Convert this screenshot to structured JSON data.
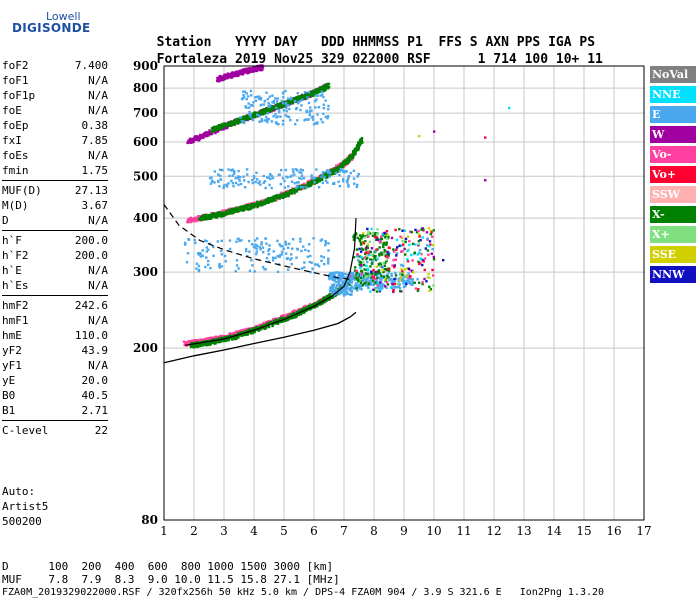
{
  "logo": {
    "top": "Lowell",
    "bottom": "DIGISONDE"
  },
  "header": {
    "labels": [
      "Station",
      "YYYY",
      "DAY",
      "DDD",
      "HHMMSS",
      "P1",
      "FFS",
      "S",
      "AXN",
      "PPS",
      "IGA",
      "PS"
    ],
    "values": [
      "Fortaleza",
      "2019",
      "Nov25",
      "329",
      "022000",
      "RSF",
      "",
      "1",
      "714",
      "100",
      "10+",
      "11"
    ]
  },
  "params": [
    [
      {
        "name": "foF2",
        "value": "7.400"
      },
      {
        "name": "foF1",
        "value": "N/A"
      },
      {
        "name": "foF1p",
        "value": "N/A"
      },
      {
        "name": "foE",
        "value": "N/A"
      },
      {
        "name": "foEp",
        "value": "0.38"
      },
      {
        "name": "fxI",
        "value": "7.85"
      },
      {
        "name": "foEs",
        "value": "N/A"
      },
      {
        "name": "fmin",
        "value": "1.75"
      }
    ],
    [
      {
        "name": "MUF(D)",
        "value": "27.13"
      },
      {
        "name": "M(D)",
        "value": "3.67"
      },
      {
        "name": "D",
        "value": "N/A"
      }
    ],
    [
      {
        "name": "h`F",
        "value": "200.0"
      },
      {
        "name": "h`F2",
        "value": "200.0"
      },
      {
        "name": "h`E",
        "value": "N/A"
      },
      {
        "name": "h`Es",
        "value": "N/A"
      }
    ],
    [
      {
        "name": "hmF2",
        "value": "242.6"
      },
      {
        "name": "hmF1",
        "value": "N/A"
      },
      {
        "name": "hmE",
        "value": "110.0"
      },
      {
        "name": "yF2",
        "value": "43.9"
      },
      {
        "name": "yF1",
        "value": "N/A"
      },
      {
        "name": "yE",
        "value": "20.0"
      },
      {
        "name": "B0",
        "value": "40.5"
      },
      {
        "name": "B1",
        "value": "2.71"
      }
    ],
    [
      {
        "name": "C-level",
        "value": "22"
      }
    ]
  ],
  "auto": {
    "line1": "Auto:",
    "line2": "Artist5",
    "line3": "500200"
  },
  "legend": [
    {
      "label": "NoVal",
      "color": "#808080"
    },
    {
      "label": "NNE",
      "color": "#00e0ff"
    },
    {
      "label": "E",
      "color": "#4aa8ee"
    },
    {
      "label": "W",
      "color": "#a000a0"
    },
    {
      "label": "Vo-",
      "color": "#ff40a0"
    },
    {
      "label": "Vo+",
      "color": "#ff0030"
    },
    {
      "label": "SSW",
      "color": "#ffb0b0"
    },
    {
      "label": "X-",
      "color": "#008000"
    },
    {
      "label": "X+",
      "color": "#80e080"
    },
    {
      "label": "SSE",
      "color": "#d0d000"
    },
    {
      "label": "NNW",
      "color": "#1010c0"
    }
  ],
  "footer": {
    "d_label": "D",
    "d_values": [
      "100",
      "200",
      "400",
      "600",
      "800",
      "1000",
      "1500",
      "3000",
      "[km]"
    ],
    "muf_label": "MUF",
    "muf_values": [
      "7.8",
      "7.9",
      "8.3",
      "9.0",
      "10.0",
      "11.5",
      "15.8",
      "27.1",
      "[MHz]"
    ],
    "info": "FZA0M_2019329022000.RSF / 320fx256h 50 kHz 5.0 km / DPS-4 FZA0M 904 / 3.9 S 321.6 E   Ion2Png 1.3.20"
  },
  "chart_data": {
    "type": "scatter",
    "xlim": [
      1,
      17
    ],
    "ylim": [
      80,
      900
    ],
    "y_scale": "log",
    "xticks": [
      1,
      2,
      3,
      4,
      5,
      6,
      7,
      8,
      9,
      10,
      11,
      12,
      13,
      14,
      15,
      16,
      17
    ],
    "yticks": [
      80,
      200,
      300,
      400,
      500,
      600,
      700,
      800,
      900
    ],
    "grid": true,
    "legend_position": "right",
    "bands": [
      {
        "color": "#ff40a0",
        "points": [
          [
            1.7,
            205
          ],
          [
            2.2,
            207
          ],
          [
            3,
            212
          ],
          [
            4,
            222
          ],
          [
            5,
            236
          ],
          [
            6,
            252
          ],
          [
            6.6,
            265
          ],
          [
            7,
            278
          ],
          [
            7.3,
            295
          ]
        ]
      },
      {
        "color": "#008000",
        "points": [
          [
            1.9,
            203
          ],
          [
            2.5,
            206
          ],
          [
            3.3,
            212
          ],
          [
            4.3,
            224
          ],
          [
            5.3,
            238
          ],
          [
            6.2,
            255
          ],
          [
            6.8,
            270
          ],
          [
            7.2,
            285
          ]
        ]
      },
      {
        "color": "#ff40a0",
        "points": [
          [
            1.8,
            395
          ],
          [
            2.5,
            405
          ],
          [
            3.5,
            420
          ],
          [
            4.5,
            440
          ],
          [
            5.5,
            470
          ],
          [
            6.3,
            500
          ],
          [
            7,
            535
          ],
          [
            7.3,
            560
          ]
        ]
      },
      {
        "color": "#008000",
        "points": [
          [
            2.2,
            400
          ],
          [
            3,
            410
          ],
          [
            4,
            428
          ],
          [
            5,
            452
          ],
          [
            6,
            485
          ],
          [
            6.8,
            520
          ],
          [
            7.3,
            560
          ],
          [
            7.6,
            610
          ]
        ]
      },
      {
        "color": "#a000a0",
        "points": [
          [
            1.8,
            600
          ],
          [
            2.5,
            630
          ],
          [
            3.3,
            665
          ],
          [
            4.2,
            700
          ],
          [
            5,
            735
          ],
          [
            5.8,
            770
          ],
          [
            6.4,
            810
          ]
        ]
      },
      {
        "color": "#008000",
        "points": [
          [
            2.6,
            640
          ],
          [
            3.4,
            670
          ],
          [
            4.3,
            705
          ],
          [
            5.1,
            740
          ],
          [
            5.9,
            775
          ],
          [
            6.5,
            810
          ]
        ]
      },
      {
        "color": "#a000a0",
        "points": [
          [
            2.8,
            840
          ],
          [
            3.3,
            860
          ],
          [
            3.8,
            880
          ],
          [
            4.3,
            895
          ]
        ]
      }
    ],
    "clusters": [
      {
        "color": "#4aa8ee",
        "x": [
          1.7,
          6.5
        ],
        "y": [
          300,
          360
        ]
      },
      {
        "color": "#4aa8ee",
        "x": [
          2.5,
          7.5
        ],
        "y": [
          470,
          520
        ]
      },
      {
        "color": "#4aa8ee",
        "x": [
          3.5,
          6.5
        ],
        "y": [
          660,
          790
        ]
      },
      {
        "color": "#4aa8ee",
        "x": [
          7.3,
          9.3
        ],
        "y": [
          275,
          300
        ]
      },
      {
        "color": "#008000",
        "x": [
          7.3,
          8.5
        ],
        "y": [
          280,
          370
        ]
      },
      {
        "color": "#4aa8ee",
        "x": [
          6.5,
          7.3
        ],
        "y": [
          265,
          300
        ]
      }
    ],
    "scatter_colors": [
      "#4aa8ee",
      "#008000",
      "#ff40a0",
      "#d0d000",
      "#a000a0",
      "#1010c0",
      "#ff0030",
      "#00e0ff",
      "#80e080"
    ],
    "scatter_region": {
      "x": [
        7.4,
        10.0
      ],
      "y": [
        270,
        380
      ]
    },
    "isolated_points": [
      {
        "x": 12.5,
        "y": 720,
        "color": "#00e0ff"
      },
      {
        "x": 10.0,
        "y": 635,
        "color": "#a000a0"
      },
      {
        "x": 11.7,
        "y": 615,
        "color": "#ff0030"
      },
      {
        "x": 11.7,
        "y": 490,
        "color": "#a000a0"
      },
      {
        "x": 9.5,
        "y": 620,
        "color": "#d0d000"
      },
      {
        "x": 10.3,
        "y": 320,
        "color": "#1010c0"
      }
    ],
    "profile_curve": {
      "color": "#000000",
      "points": [
        [
          1.0,
          185
        ],
        [
          2,
          192
        ],
        [
          3,
          198
        ],
        [
          4,
          205
        ],
        [
          5,
          212
        ],
        [
          6,
          220
        ],
        [
          6.8,
          228
        ],
        [
          7.2,
          236
        ],
        [
          7.4,
          242
        ]
      ]
    },
    "model_curve": {
      "color": "#000000",
      "points": [
        [
          1.0,
          430
        ],
        [
          1.5,
          385
        ],
        [
          2.2,
          355
        ],
        [
          3,
          338
        ],
        [
          4,
          322
        ],
        [
          5,
          310
        ],
        [
          6,
          299
        ],
        [
          6.8,
          291
        ],
        [
          7.3,
          288
        ]
      ]
    },
    "trace_curve": {
      "color": "#000000",
      "points": [
        [
          1.7,
          203
        ],
        [
          3,
          210
        ],
        [
          4,
          220
        ],
        [
          5,
          233
        ],
        [
          6,
          250
        ],
        [
          6.6,
          264
        ],
        [
          7,
          278
        ],
        [
          7.2,
          300
        ],
        [
          7.35,
          340
        ],
        [
          7.4,
          400
        ]
      ]
    }
  }
}
